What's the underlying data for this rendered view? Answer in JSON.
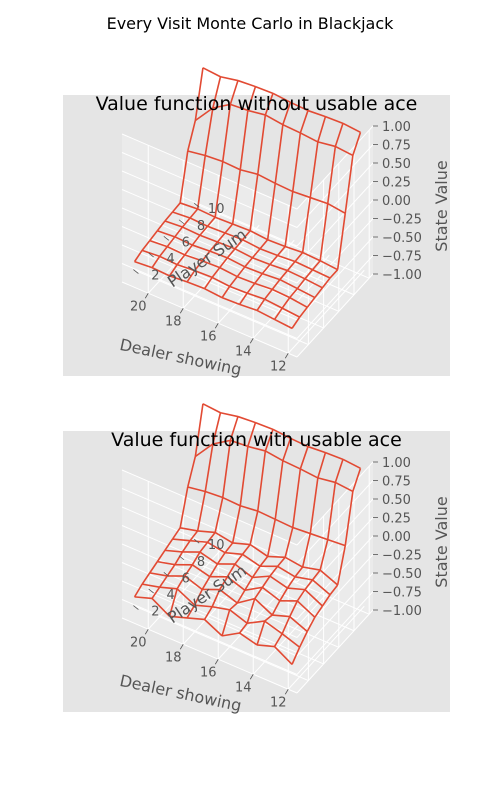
{
  "figure_title": "Every Visit Monte Carlo in Blackjack",
  "colors": {
    "panel_bg": "#e5e5e5",
    "wire": "#e24a33",
    "grid": "#ffffff",
    "text": "#555555",
    "title": "#000000"
  },
  "chart_data": [
    {
      "type": "wireframe-3d",
      "title": "Value function without usable ace",
      "xlabel": "Dealer showing",
      "ylabel": "Player Sum",
      "zlabel": "State Value",
      "x_ticks": [
        "12",
        "14",
        "16",
        "18",
        "20"
      ],
      "y_ticks": [
        "2",
        "4",
        "6",
        "8",
        "10"
      ],
      "z_ticks": [
        "1.00",
        "0.75",
        "0.50",
        "0.25",
        "0.00",
        "−0.25",
        "−0.50",
        "−0.75",
        "−1.00"
      ],
      "x": [
        12,
        13,
        14,
        15,
        16,
        17,
        18,
        19,
        20,
        21
      ],
      "y": [
        1,
        2,
        3,
        4,
        5,
        6,
        7,
        8,
        9,
        10
      ],
      "z": [
        [
          -0.72,
          -0.7,
          -0.68,
          -0.7,
          -0.71,
          -0.69,
          -0.7,
          -0.72,
          -0.71,
          -0.73
        ],
        [
          -0.68,
          -0.66,
          -0.64,
          -0.66,
          -0.67,
          -0.65,
          -0.66,
          -0.68,
          -0.67,
          -0.69
        ],
        [
          -0.66,
          -0.63,
          -0.62,
          -0.64,
          -0.65,
          -0.63,
          -0.64,
          -0.66,
          -0.65,
          -0.67
        ],
        [
          -0.64,
          -0.62,
          -0.6,
          -0.62,
          -0.63,
          -0.61,
          -0.62,
          -0.64,
          -0.63,
          -0.65
        ],
        [
          -0.62,
          -0.6,
          -0.59,
          -0.61,
          -0.62,
          -0.6,
          -0.61,
          -0.62,
          -0.61,
          -0.63
        ],
        [
          -0.6,
          -0.59,
          -0.58,
          -0.6,
          -0.61,
          -0.59,
          -0.6,
          -0.61,
          -0.6,
          -0.62
        ],
        [
          -0.6,
          -0.58,
          -0.57,
          -0.59,
          -0.6,
          -0.58,
          -0.59,
          -0.6,
          -0.59,
          -0.61
        ],
        [
          0.05,
          0.08,
          0.06,
          0.04,
          0.05,
          0.07,
          0.03,
          0.04,
          0.02,
          -0.02
        ],
        [
          0.72,
          0.74,
          0.7,
          0.72,
          0.73,
          0.76,
          0.72,
          0.7,
          0.55,
          0.28
        ],
        [
          0.92,
          0.94,
          0.93,
          0.91,
          0.92,
          0.94,
          0.93,
          0.91,
          0.86,
          0.88
        ]
      ]
    },
    {
      "type": "wireframe-3d",
      "title": "Value function with usable ace",
      "xlabel": "Dealer showing",
      "ylabel": "Player Sum",
      "zlabel": "State Value",
      "x_ticks": [
        "12",
        "14",
        "16",
        "18",
        "20"
      ],
      "y_ticks": [
        "2",
        "4",
        "6",
        "8",
        "10"
      ],
      "z_ticks": [
        "1.00",
        "0.75",
        "0.50",
        "0.25",
        "0.00",
        "−0.25",
        "−0.50",
        "−0.75",
        "−1.00"
      ],
      "x": [
        12,
        13,
        14,
        15,
        16,
        17,
        18,
        19,
        20,
        21
      ],
      "y": [
        1,
        2,
        3,
        4,
        5,
        6,
        7,
        8,
        9,
        10
      ],
      "z": [
        [
          -0.72,
          -0.58,
          -0.66,
          -0.6,
          -0.74,
          -0.62,
          -0.7,
          -0.78,
          -0.64,
          -0.72
        ],
        [
          -0.6,
          -0.52,
          -0.45,
          -0.58,
          -0.5,
          -0.56,
          -0.64,
          -0.52,
          -0.6,
          -0.66
        ],
        [
          -0.5,
          -0.4,
          -0.48,
          -0.36,
          -0.52,
          -0.44,
          -0.54,
          -0.46,
          -0.56,
          -0.62
        ],
        [
          -0.42,
          -0.3,
          -0.4,
          -0.32,
          -0.46,
          -0.38,
          -0.48,
          -0.42,
          -0.52,
          -0.58
        ],
        [
          -0.38,
          -0.26,
          -0.34,
          -0.28,
          -0.4,
          -0.32,
          -0.42,
          -0.36,
          -0.46,
          -0.54
        ],
        [
          -0.34,
          -0.24,
          -0.3,
          -0.26,
          -0.36,
          -0.3,
          -0.38,
          -0.34,
          -0.42,
          -0.5
        ],
        [
          -0.32,
          -0.22,
          -0.28,
          -0.25,
          -0.34,
          -0.28,
          -0.36,
          -0.32,
          -0.4,
          -0.46
        ],
        [
          0.1,
          0.08,
          0.06,
          0.04,
          0.05,
          0.06,
          0.03,
          0.04,
          0.02,
          -0.02
        ],
        [
          0.72,
          0.74,
          0.7,
          0.72,
          0.73,
          0.76,
          0.72,
          0.7,
          0.55,
          0.28
        ],
        [
          0.92,
          0.94,
          0.93,
          0.91,
          0.92,
          0.94,
          0.93,
          0.91,
          0.86,
          0.88
        ]
      ]
    }
  ]
}
